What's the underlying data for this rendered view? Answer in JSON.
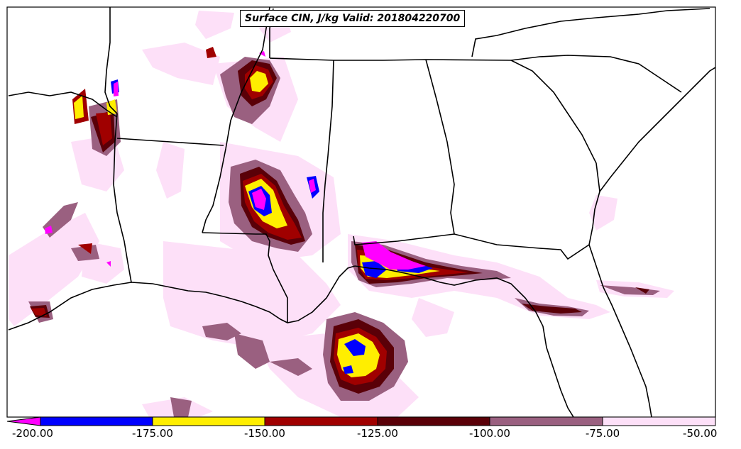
{
  "map": {
    "title": "Surface CIN, J/kg Valid: 201804220700",
    "region": "Southeastern United States and northern Gulf of Mexico",
    "colors": {
      "background": "#ffffff",
      "border": "#000000"
    }
  },
  "legend": {
    "ticks": [
      "-200.00",
      "-175.00",
      "-150.00",
      "-125.00",
      "-100.00",
      "-75.00",
      "-50.00"
    ],
    "bins": [
      {
        "from": -200,
        "to": -175,
        "color": "#0000ff"
      },
      {
        "from": -175,
        "to": -150,
        "color": "#ffee00"
      },
      {
        "from": -150,
        "to": -125,
        "color": "#a00000"
      },
      {
        "from": -125,
        "to": -100,
        "color": "#5a0008"
      },
      {
        "from": -100,
        "to": -75,
        "color": "#9a6080"
      },
      {
        "from": -75,
        "to": -50,
        "color": "#fde0f8"
      }
    ],
    "below_min_color": "#ff00ff"
  }
}
